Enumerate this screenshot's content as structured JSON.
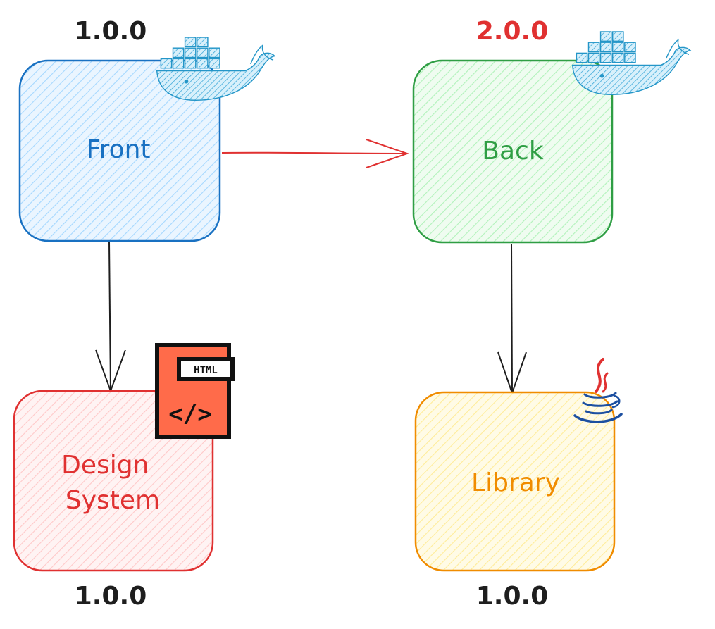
{
  "nodes": {
    "front": {
      "label_lines": [
        "Front"
      ],
      "version": "1.0.0",
      "color": "#1971c2",
      "fill": "#a5d8ff",
      "version_color": "#1e1e1e",
      "badge": "docker-whale-icon"
    },
    "back": {
      "label_lines": [
        "Back"
      ],
      "version": "2.0.0",
      "color": "#2f9e44",
      "fill": "#b2f2bb",
      "version_color": "#e03131",
      "badge": "docker-whale-icon"
    },
    "design": {
      "label_lines": [
        "Design",
        "System"
      ],
      "version": "1.0.0",
      "color": "#e03131",
      "fill": "#ffc9c9",
      "version_color": "#1e1e1e",
      "badge": "html-file-icon"
    },
    "library": {
      "label_lines": [
        "Library"
      ],
      "version": "1.0.0",
      "color": "#f08c00",
      "fill": "#ffec99",
      "version_color": "#1e1e1e",
      "badge": "java-icon"
    }
  },
  "html_badge": {
    "tag": "HTML",
    "code": "</>"
  },
  "edges": [
    {
      "from": "front",
      "to": "back",
      "color": "#e03131"
    },
    {
      "from": "front",
      "to": "design",
      "color": "#1e1e1e"
    },
    {
      "from": "back",
      "to": "library",
      "color": "#1e1e1e"
    }
  ]
}
